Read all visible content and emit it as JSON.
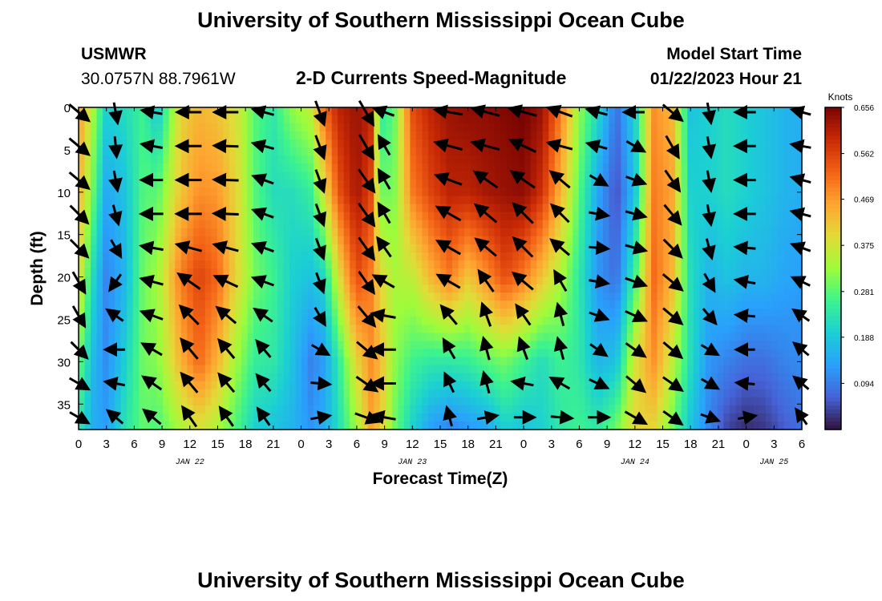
{
  "header": {
    "title": "University of Southern Mississippi Ocean Cube",
    "station": "USMWR",
    "latlon": "30.0757N  88.7961W",
    "subtitle": "2-D Currents Speed-Magnitude",
    "model_label": "Model Start Time",
    "model_time": "01/22/2023 Hour 21"
  },
  "footer": {
    "title": "University of Southern Mississippi Ocean Cube"
  },
  "chart_data": {
    "type": "heatmap",
    "title": "2-D Currents Speed-Magnitude",
    "xlabel": "Forecast Time(Z)",
    "ylabel": "Depth (ft)",
    "x_range_hours": [
      0,
      78
    ],
    "ylim": [
      0,
      38
    ],
    "y_inverted": true,
    "x_tick_hours": [
      0,
      3,
      6,
      9,
      12,
      15,
      18,
      21,
      24,
      27,
      30,
      33,
      36,
      39,
      42,
      45,
      48,
      51,
      54,
      57,
      60,
      63,
      66,
      69,
      72,
      75,
      78
    ],
    "x_tick_labels": [
      "0",
      "3",
      "6",
      "9",
      "12",
      "15",
      "18",
      "21",
      "0",
      "3",
      "6",
      "9",
      "12",
      "15",
      "18",
      "21",
      "0",
      "3",
      "6",
      "9",
      "12",
      "15",
      "18",
      "21",
      "0",
      "3",
      "6"
    ],
    "date_labels": [
      {
        "label": "JAN 22",
        "hour": 12
      },
      {
        "label": "JAN 23",
        "hour": 36
      },
      {
        "label": "JAN 24",
        "hour": 60
      },
      {
        "label": "JAN 25",
        "hour": 75
      }
    ],
    "y_ticks": [
      0,
      5,
      10,
      15,
      20,
      25,
      30,
      35
    ],
    "colorbar": {
      "unit": "Knots",
      "min": 0.0,
      "max": 0.656,
      "tick_labels": [
        "0.656",
        "0.562",
        "0.469",
        "0.375",
        "0.281",
        "0.188",
        "0.094"
      ],
      "tick_values": [
        0.656,
        0.562,
        0.469,
        0.375,
        0.281,
        0.188,
        0.094
      ]
    },
    "speed_field": {
      "depths_ft": [
        0,
        10,
        20,
        30,
        38
      ],
      "columns": [
        {
          "hour": 0,
          "speed": [
            0.48,
            0.45,
            0.4,
            0.3,
            0.24
          ]
        },
        {
          "hour": 1.5,
          "speed": [
            0.34,
            0.3,
            0.22,
            0.17,
            0.15
          ]
        },
        {
          "hour": 3,
          "speed": [
            0.2,
            0.14,
            0.1,
            0.11,
            0.13
          ]
        },
        {
          "hour": 5,
          "speed": [
            0.22,
            0.18,
            0.16,
            0.2,
            0.23
          ]
        },
        {
          "hour": 7,
          "speed": [
            0.26,
            0.28,
            0.3,
            0.3,
            0.29
          ]
        },
        {
          "hour": 8.5,
          "speed": [
            0.18,
            0.28,
            0.33,
            0.31,
            0.27
          ]
        },
        {
          "hour": 11,
          "speed": [
            0.4,
            0.42,
            0.5,
            0.44,
            0.34
          ]
        },
        {
          "hour": 13,
          "speed": [
            0.44,
            0.48,
            0.56,
            0.52,
            0.38
          ]
        },
        {
          "hour": 15,
          "speed": [
            0.42,
            0.47,
            0.52,
            0.44,
            0.34
          ]
        },
        {
          "hour": 17,
          "speed": [
            0.38,
            0.4,
            0.4,
            0.33,
            0.27
          ]
        },
        {
          "hour": 19,
          "speed": [
            0.28,
            0.28,
            0.3,
            0.25,
            0.2
          ]
        },
        {
          "hour": 21,
          "speed": [
            0.24,
            0.22,
            0.26,
            0.24,
            0.18
          ]
        },
        {
          "hour": 23,
          "speed": [
            0.32,
            0.22,
            0.2,
            0.18,
            0.16
          ]
        },
        {
          "hour": 25,
          "speed": [
            0.36,
            0.25,
            0.18,
            0.1,
            0.12
          ]
        },
        {
          "hour": 26.5,
          "speed": [
            0.52,
            0.38,
            0.21,
            0.13,
            0.15
          ]
        },
        {
          "hour": 28,
          "speed": [
            0.6,
            0.54,
            0.38,
            0.24,
            0.22
          ]
        },
        {
          "hour": 30,
          "speed": [
            0.63,
            0.62,
            0.55,
            0.4,
            0.33
          ]
        },
        {
          "hour": 31.5,
          "speed": [
            0.6,
            0.56,
            0.5,
            0.48,
            0.46
          ]
        },
        {
          "hour": 32.5,
          "speed": [
            0.24,
            0.3,
            0.4,
            0.44,
            0.42
          ]
        },
        {
          "hour": 34,
          "speed": [
            0.28,
            0.3,
            0.34,
            0.32,
            0.3
          ]
        },
        {
          "hour": 36,
          "speed": [
            0.55,
            0.5,
            0.36,
            0.26,
            0.2
          ]
        },
        {
          "hour": 38,
          "speed": [
            0.6,
            0.56,
            0.44,
            0.24,
            0.13
          ]
        },
        {
          "hour": 40,
          "speed": [
            0.63,
            0.6,
            0.5,
            0.24,
            0.1
          ]
        },
        {
          "hour": 42,
          "speed": [
            0.64,
            0.6,
            0.42,
            0.25,
            0.12
          ]
        },
        {
          "hour": 44,
          "speed": [
            0.64,
            0.62,
            0.48,
            0.28,
            0.14
          ]
        },
        {
          "hour": 46,
          "speed": [
            0.65,
            0.63,
            0.55,
            0.3,
            0.2
          ]
        },
        {
          "hour": 48,
          "speed": [
            0.66,
            0.64,
            0.5,
            0.26,
            0.18
          ]
        },
        {
          "hour": 50,
          "speed": [
            0.63,
            0.58,
            0.42,
            0.22,
            0.2
          ]
        },
        {
          "hour": 52,
          "speed": [
            0.5,
            0.44,
            0.34,
            0.26,
            0.24
          ]
        },
        {
          "hour": 54,
          "speed": [
            0.32,
            0.28,
            0.24,
            0.24,
            0.26
          ]
        },
        {
          "hour": 56,
          "speed": [
            0.22,
            0.14,
            0.12,
            0.16,
            0.24
          ]
        },
        {
          "hour": 58,
          "speed": [
            0.08,
            0.05,
            0.08,
            0.18,
            0.3
          ]
        },
        {
          "hour": 60,
          "speed": [
            0.2,
            0.18,
            0.26,
            0.38,
            0.4
          ]
        },
        {
          "hour": 62,
          "speed": [
            0.48,
            0.5,
            0.52,
            0.48,
            0.4
          ]
        },
        {
          "hour": 64,
          "speed": [
            0.44,
            0.46,
            0.44,
            0.36,
            0.3
          ]
        },
        {
          "hour": 66,
          "speed": [
            0.18,
            0.2,
            0.22,
            0.22,
            0.18
          ]
        },
        {
          "hour": 68,
          "speed": [
            0.2,
            0.2,
            0.16,
            0.12,
            0.1
          ]
        },
        {
          "hour": 70,
          "speed": [
            0.22,
            0.22,
            0.18,
            0.1,
            0.04
          ]
        },
        {
          "hour": 72,
          "speed": [
            0.2,
            0.2,
            0.16,
            0.08,
            0.02
          ]
        },
        {
          "hour": 74,
          "speed": [
            0.18,
            0.18,
            0.16,
            0.08,
            0.03
          ]
        },
        {
          "hour": 76,
          "speed": [
            0.16,
            0.16,
            0.14,
            0.1,
            0.06
          ]
        },
        {
          "hour": 78,
          "speed": [
            0.15,
            0.15,
            0.13,
            0.11,
            0.08
          ]
        }
      ]
    },
    "vector_columns_hours": [
      0,
      4,
      8,
      12,
      16,
      20,
      26,
      31,
      33,
      40,
      44,
      48,
      52,
      56,
      60,
      64,
      68,
      72,
      78
    ],
    "vector_depths_ft": [
      0,
      4,
      8,
      12,
      16,
      20,
      24,
      28,
      32,
      36
    ],
    "vector_direction_deg": [
      [
        -40,
        -80,
        170,
        180,
        180,
        165,
        -70,
        -60,
        160,
        170,
        165,
        165,
        160,
        165,
        180,
        -40,
        -80,
        180,
        165
      ],
      [
        -40,
        -85,
        170,
        180,
        178,
        165,
        -70,
        -60,
        120,
        165,
        165,
        155,
        165,
        165,
        -30,
        -60,
        -80,
        180,
        170
      ],
      [
        -40,
        -80,
        180,
        180,
        178,
        160,
        -70,
        -55,
        120,
        160,
        145,
        145,
        140,
        -30,
        -20,
        -55,
        -80,
        180,
        165
      ],
      [
        -45,
        -75,
        180,
        180,
        178,
        160,
        -70,
        -55,
        120,
        150,
        140,
        135,
        135,
        -10,
        -15,
        -50,
        -80,
        180,
        165
      ],
      [
        -45,
        -60,
        170,
        165,
        165,
        160,
        -70,
        -55,
        125,
        150,
        140,
        135,
        140,
        -5,
        -15,
        -45,
        -75,
        175,
        160
      ],
      [
        -60,
        -125,
        165,
        145,
        155,
        160,
        -70,
        -55,
        150,
        150,
        125,
        140,
        120,
        -10,
        -20,
        -40,
        -60,
        170,
        155
      ],
      [
        -60,
        145,
        160,
        135,
        140,
        145,
        -60,
        -50,
        170,
        130,
        110,
        125,
        105,
        -20,
        -25,
        -40,
        -50,
        175,
        145
      ],
      [
        -45,
        180,
        150,
        130,
        130,
        130,
        -30,
        -40,
        180,
        120,
        105,
        110,
        105,
        -35,
        -35,
        -40,
        -30,
        180,
        140
      ],
      [
        -30,
        170,
        145,
        130,
        130,
        130,
        -5,
        -35,
        180,
        115,
        105,
        170,
        150,
        -25,
        -40,
        -35,
        -30,
        175,
        140
      ],
      [
        -30,
        140,
        140,
        125,
        125,
        125,
        10,
        -20,
        170,
        105,
        10,
        0,
        -5,
        0,
        -30,
        -35,
        -20,
        10,
        125
      ]
    ]
  }
}
